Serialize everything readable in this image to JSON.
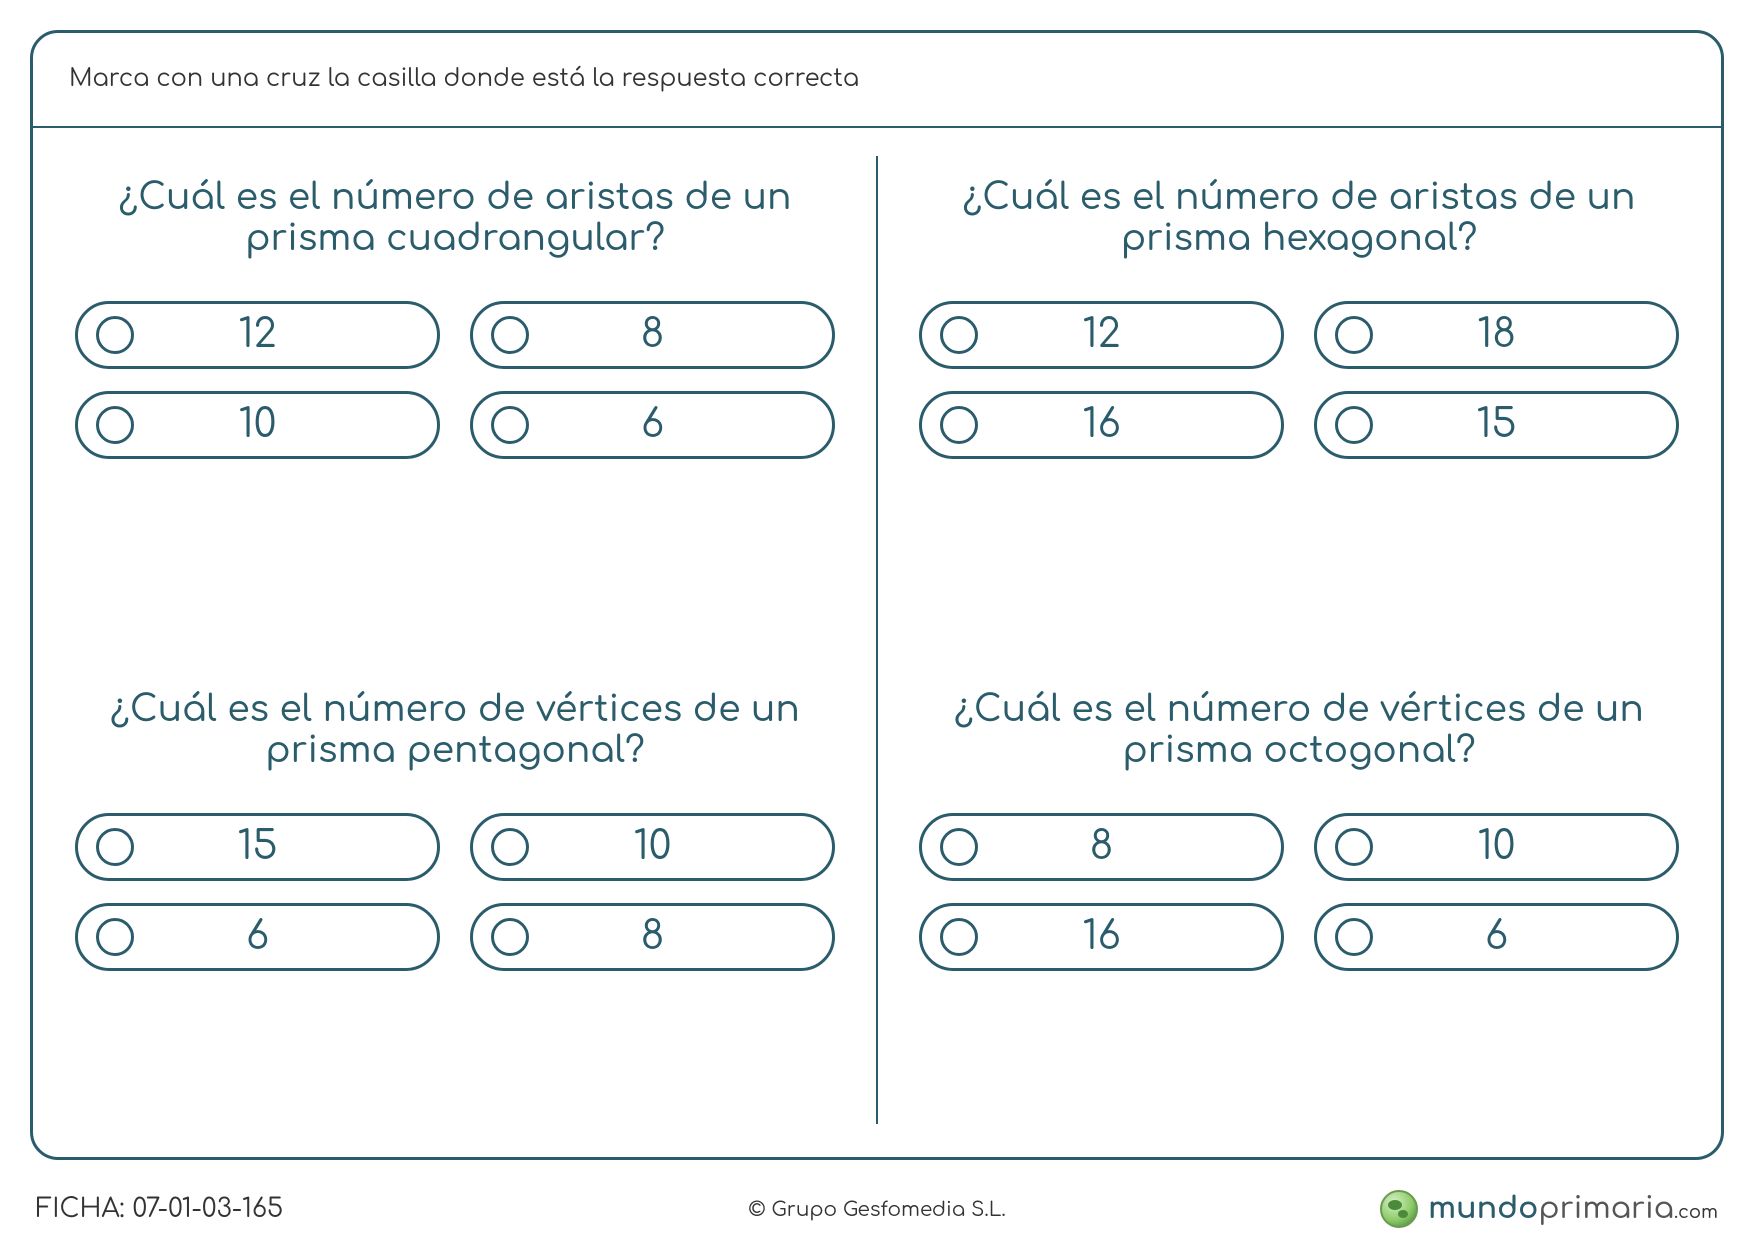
{
  "colors": {
    "primary": "#2a5c6b",
    "text": "#333333",
    "background": "#ffffff"
  },
  "instructions": "Marca con una cruz la casilla donde está la respuesta correcta",
  "questions": [
    {
      "line1": "¿Cuál es el número de aristas de un",
      "line2": "prisma cuadrangular?",
      "options": [
        "12",
        "8",
        "10",
        "6"
      ]
    },
    {
      "line1": "¿Cuál es el número de aristas de un",
      "line2": "prisma hexagonal?",
      "options": [
        "12",
        "18",
        "16",
        "15"
      ]
    },
    {
      "line1": "¿Cuál es el número de vértices de un",
      "line2": "prisma pentagonal?",
      "options": [
        "15",
        "10",
        "6",
        "8"
      ]
    },
    {
      "line1": "¿Cuál es el número de vértices de un",
      "line2": "prisma octogonal?",
      "options": [
        "8",
        "10",
        "16",
        "6"
      ]
    }
  ],
  "footer": {
    "ficha_label": "FICHA: 07-01-03-165",
    "copyright": "© Grupo Gesfomedia S.L.",
    "brand_part1": "mundo",
    "brand_part2": "primaria",
    "brand_part3": ".com"
  }
}
